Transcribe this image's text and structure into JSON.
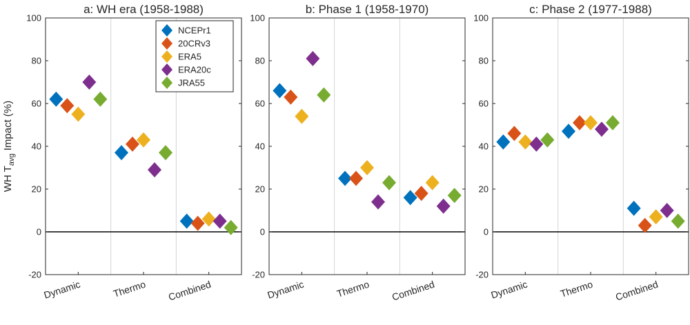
{
  "chart_data": [
    {
      "type": "scatter",
      "title": "a: WH era (1958-1988)",
      "ylabel": "WH T",
      "ylabel_subscript": "avg",
      "ylabel_suffix": " Impact (%)",
      "ylim": [
        -20,
        100
      ],
      "yticks": [
        "-20",
        "0",
        "20",
        "40",
        "60",
        "80",
        "100"
      ],
      "categories": [
        "Dynamic",
        "Thermo",
        "Combined"
      ],
      "legend": {
        "placement": "top-right"
      },
      "series": [
        {
          "name": "NCEPr1",
          "color": "#0072BD",
          "values": [
            62,
            37,
            5
          ]
        },
        {
          "name": "20CRv3",
          "color": "#D95319",
          "values": [
            59,
            41,
            4
          ]
        },
        {
          "name": "ERA5",
          "color": "#EDB120",
          "values": [
            55,
            43,
            6
          ]
        },
        {
          "name": "ERA20c",
          "color": "#7E2F8E",
          "values": [
            70,
            29,
            5
          ]
        },
        {
          "name": "JRA55",
          "color": "#77AC30",
          "values": [
            62,
            37,
            2
          ]
        }
      ]
    },
    {
      "type": "scatter",
      "title": "b: Phase 1 (1958-1970)",
      "ylim": [
        -20,
        100
      ],
      "yticks": [
        "-20",
        "0",
        "20",
        "40",
        "60",
        "80",
        "100"
      ],
      "categories": [
        "Dynamic",
        "Thermo",
        "Combined"
      ],
      "series": [
        {
          "name": "NCEPr1",
          "color": "#0072BD",
          "values": [
            66,
            25,
            16
          ]
        },
        {
          "name": "20CRv3",
          "color": "#D95319",
          "values": [
            63,
            25,
            18
          ]
        },
        {
          "name": "ERA5",
          "color": "#EDB120",
          "values": [
            54,
            30,
            23
          ]
        },
        {
          "name": "ERA20c",
          "color": "#7E2F8E",
          "values": [
            81,
            14,
            12
          ]
        },
        {
          "name": "JRA55",
          "color": "#77AC30",
          "values": [
            64,
            23,
            17
          ]
        }
      ]
    },
    {
      "type": "scatter",
      "title": "c: Phase 2 (1977-1988)",
      "ylim": [
        -20,
        100
      ],
      "yticks": [
        "-20",
        "0",
        "20",
        "40",
        "60",
        "80",
        "100"
      ],
      "categories": [
        "Dynamic",
        "Thermo",
        "Combined"
      ],
      "series": [
        {
          "name": "NCEPr1",
          "color": "#0072BD",
          "values": [
            42,
            47,
            11
          ]
        },
        {
          "name": "20CRv3",
          "color": "#D95319",
          "values": [
            46,
            51,
            3
          ]
        },
        {
          "name": "ERA5",
          "color": "#EDB120",
          "values": [
            42,
            51,
            7
          ]
        },
        {
          "name": "ERA20c",
          "color": "#7E2F8E",
          "values": [
            41,
            48,
            10
          ]
        },
        {
          "name": "JRA55",
          "color": "#77AC30",
          "values": [
            43,
            51,
            5
          ]
        }
      ]
    }
  ]
}
